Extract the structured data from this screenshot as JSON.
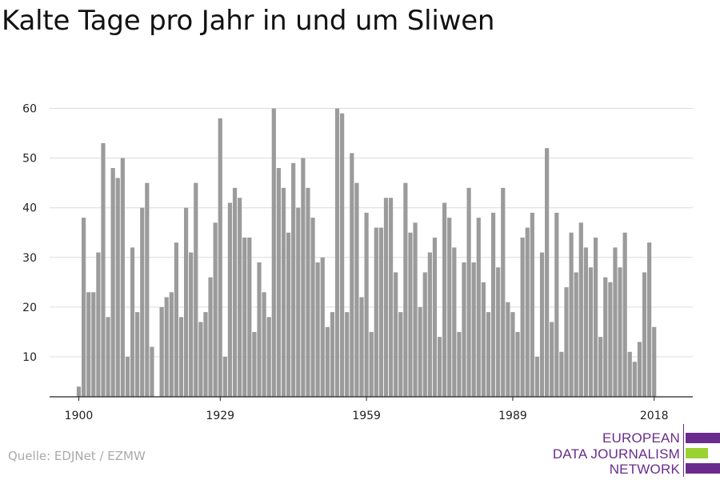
{
  "header": {
    "title": "Kalte Tage pro Jahr in und um Sliwen"
  },
  "footer": {
    "source": "Quelle: EDJNet / EZMW"
  },
  "logo": {
    "lines": [
      "EUROPEAN",
      "DATA JOURNALISM",
      "NETWORK"
    ],
    "colors": {
      "purple": "#6a2c8c",
      "green": "#9bd131"
    }
  },
  "chart_data": {
    "type": "bar",
    "title": "Kalte Tage pro Jahr in und um Sliwen",
    "xlabel": "",
    "ylabel": "",
    "x_start": 1900,
    "x_end": 2018,
    "x_ticks": [
      "1900",
      "1929",
      "1959",
      "1989",
      "2018"
    ],
    "y_ticks": [
      10,
      20,
      30,
      40,
      50,
      60
    ],
    "ylim": [
      2,
      60
    ],
    "grid": true,
    "bar_color": "#9b9b9b",
    "values": [
      4,
      38,
      23,
      23,
      31,
      53,
      18,
      48,
      46,
      50,
      10,
      32,
      19,
      40,
      45,
      12,
      null,
      20,
      22,
      23,
      33,
      18,
      40,
      31,
      45,
      17,
      19,
      26,
      37,
      58,
      10,
      41,
      44,
      42,
      34,
      34,
      15,
      29,
      23,
      18,
      60,
      48,
      44,
      35,
      49,
      40,
      50,
      44,
      38,
      29,
      30,
      16,
      19,
      60,
      59,
      19,
      51,
      45,
      22,
      39,
      15,
      36,
      36,
      42,
      42,
      27,
      19,
      45,
      35,
      37,
      20,
      27,
      31,
      34,
      14,
      41,
      38,
      32,
      15,
      29,
      44,
      29,
      38,
      25,
      19,
      39,
      28,
      44,
      21,
      19,
      15,
      34,
      36,
      39,
      10,
      31,
      52,
      17,
      39,
      11,
      24,
      35,
      27,
      37,
      32,
      28,
      34,
      14,
      26,
      25,
      32,
      28,
      35,
      11,
      9,
      13,
      27,
      33,
      16
    ]
  }
}
